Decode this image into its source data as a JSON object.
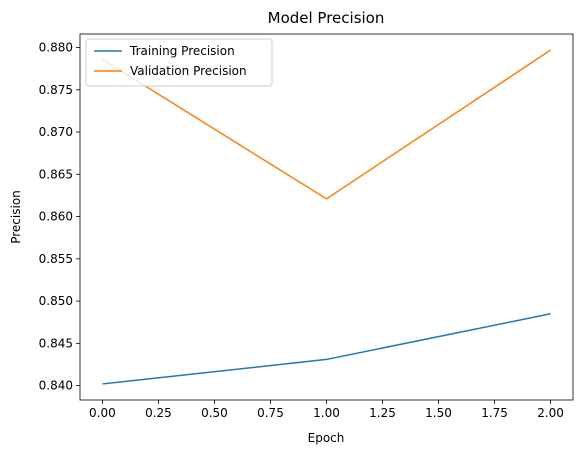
{
  "chart_data": {
    "type": "line",
    "title": "Model Precision",
    "xlabel": "Epoch",
    "ylabel": "Precision",
    "x": [
      0,
      1,
      2
    ],
    "series": [
      {
        "name": "Training Precision",
        "values": [
          0.8402,
          0.8431,
          0.8485
        ],
        "color": "#1f77b4"
      },
      {
        "name": "Validation Precision",
        "values": [
          0.8786,
          0.8621,
          0.8797
        ],
        "color": "#ff7f0e"
      }
    ],
    "xlim": [
      -0.1,
      2.1
    ],
    "ylim": [
      0.8383,
      0.8816
    ],
    "xticks": [
      0.0,
      0.25,
      0.5,
      0.75,
      1.0,
      1.25,
      1.5,
      1.75,
      2.0
    ],
    "xtick_labels": [
      "0.00",
      "0.25",
      "0.50",
      "0.75",
      "1.00",
      "1.25",
      "1.50",
      "1.75",
      "2.00"
    ],
    "yticks": [
      0.84,
      0.845,
      0.85,
      0.855,
      0.86,
      0.865,
      0.87,
      0.875,
      0.88
    ],
    "ytick_labels": [
      "0.840",
      "0.845",
      "0.850",
      "0.855",
      "0.860",
      "0.865",
      "0.870",
      "0.875",
      "0.880"
    ],
    "grid": false,
    "legend_position": "top-left"
  }
}
